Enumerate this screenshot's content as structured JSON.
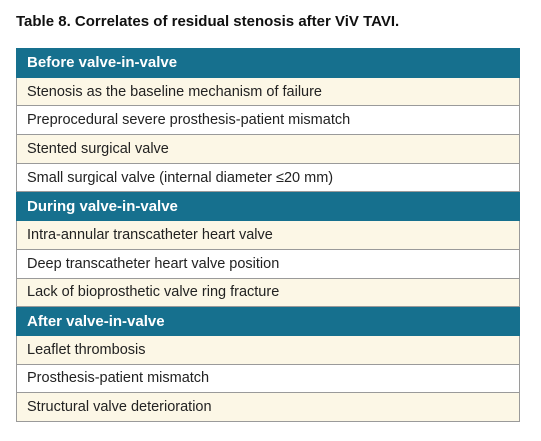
{
  "title": "Table 8. Correlates of residual stenosis after ViV TAVI.",
  "table": {
    "sections": [
      {
        "heading": "Before valve-in-valve",
        "rows": [
          "Stenosis as the baseline mechanism of failure",
          "Preprocedural severe prosthesis-patient mismatch",
          "Stented surgical valve",
          "Small surgical valve (internal diameter ≤20 mm)"
        ]
      },
      {
        "heading": "During valve-in-valve",
        "rows": [
          "Intra-annular transcatheter heart valve",
          "Deep transcatheter heart valve position",
          "Lack of bioprosthetic valve ring fracture"
        ]
      },
      {
        "heading": "After valve-in-valve",
        "rows": [
          "Leaflet thrombosis",
          "Prosthesis-patient mismatch",
          "Structural valve deterioration"
        ]
      }
    ]
  }
}
